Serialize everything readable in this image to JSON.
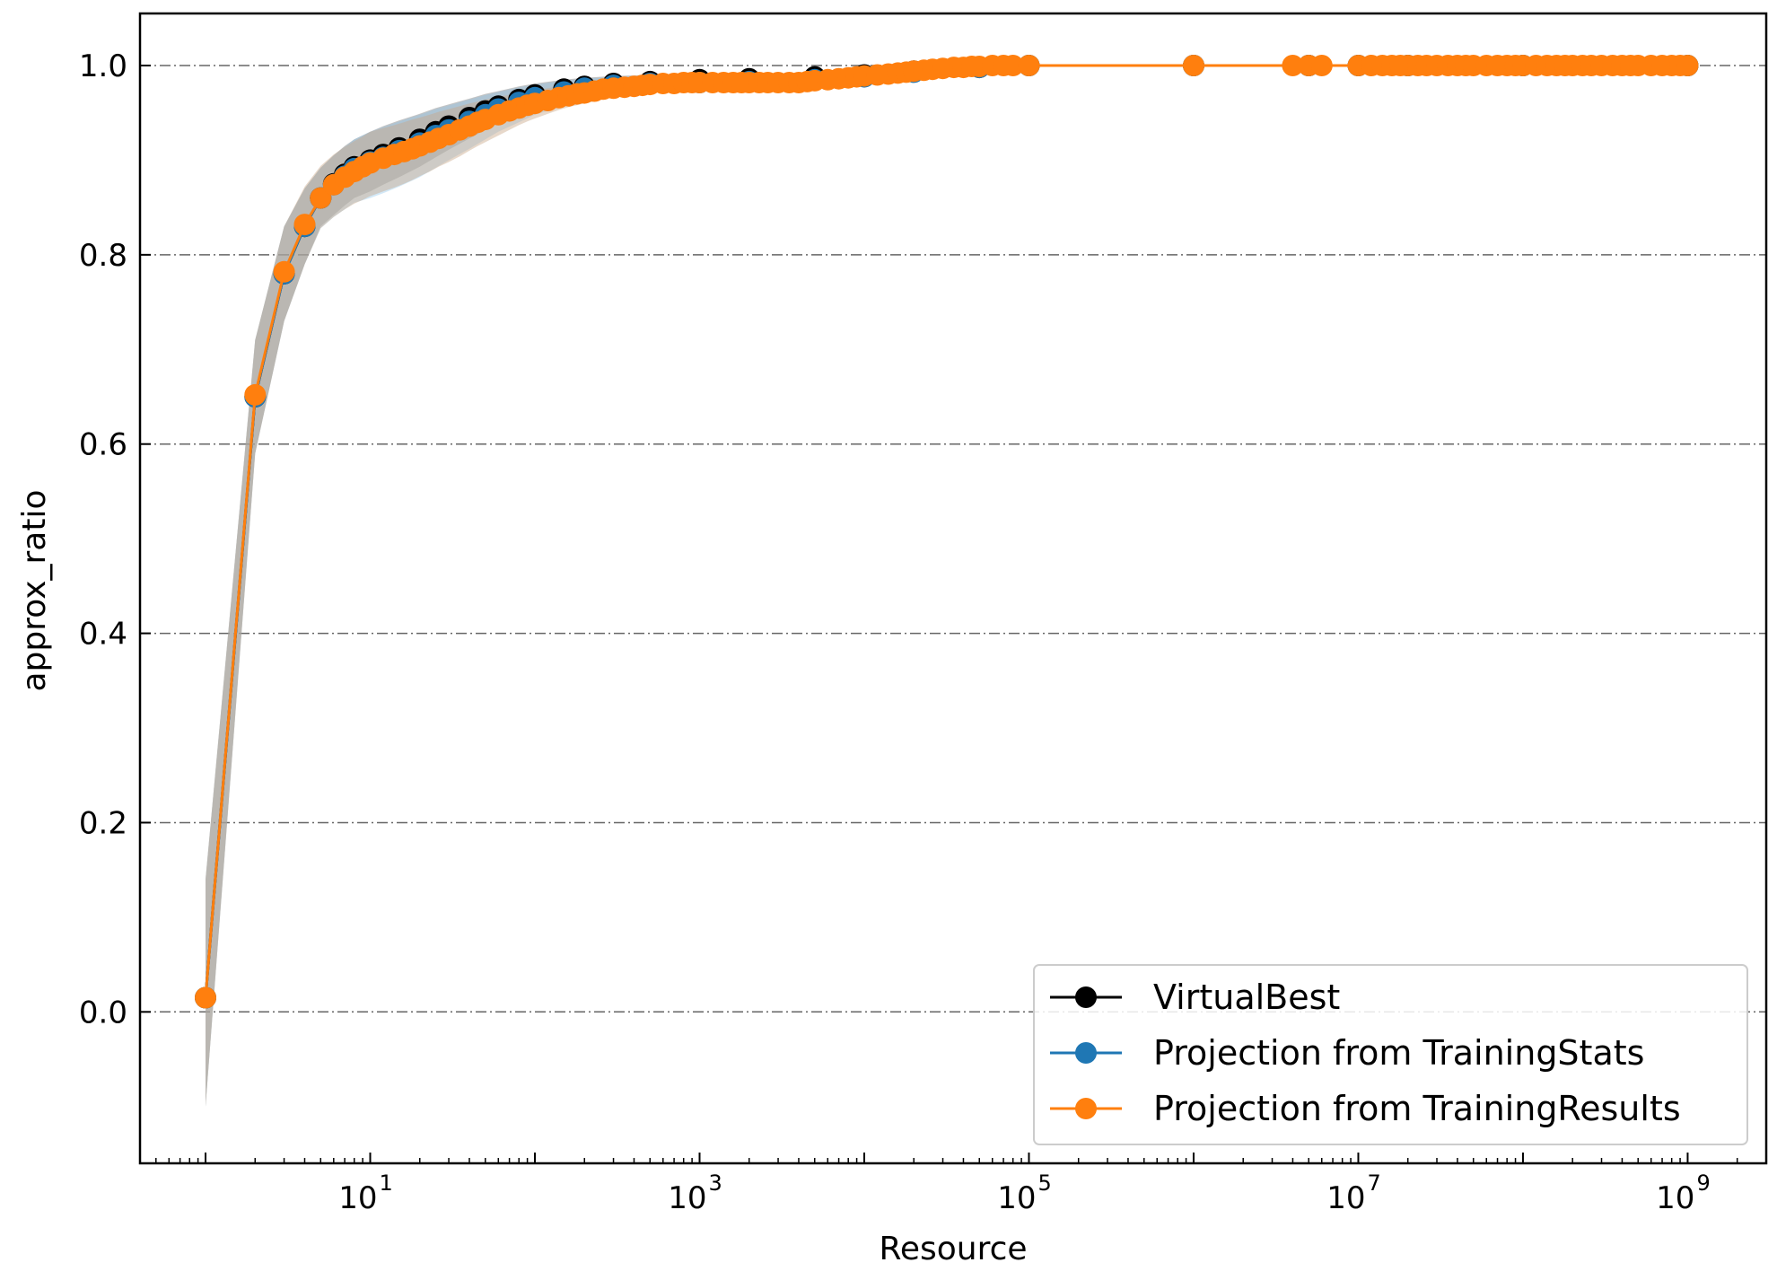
{
  "chart_data": {
    "type": "line",
    "xlabel": "Resource",
    "ylabel": "approx_ratio",
    "xscale": "log",
    "xlim": [
      0.4,
      3000000000
    ],
    "ylim": [
      -0.16,
      1.055
    ],
    "x_ticks": [
      {
        "base": "10",
        "exp": "1",
        "value": 10
      },
      {
        "base": "10",
        "exp": "3",
        "value": 1000
      },
      {
        "base": "10",
        "exp": "5",
        "value": 100000
      },
      {
        "base": "10",
        "exp": "7",
        "value": 10000000
      },
      {
        "base": "10",
        "exp": "9",
        "value": 1000000000
      }
    ],
    "y_ticks": [
      {
        "label": "0.0",
        "value": 0.0
      },
      {
        "label": "0.2",
        "value": 0.2
      },
      {
        "label": "0.4",
        "value": 0.4
      },
      {
        "label": "0.6",
        "value": 0.6
      },
      {
        "label": "0.8",
        "value": 0.8
      },
      {
        "label": "1.0",
        "value": 1.0
      }
    ],
    "grid": "horizontal dash-dot",
    "legend_position": "bottom-right",
    "series": [
      {
        "name": "VirtualBest",
        "color": "#000000",
        "band_color": "#555555",
        "x": [
          1,
          2,
          3,
          4,
          5,
          6,
          7,
          8,
          10,
          12,
          15,
          20,
          25,
          30,
          40,
          50,
          60,
          80,
          100,
          150,
          200,
          300,
          500,
          1000,
          2000,
          5000,
          10000,
          20000,
          50000,
          100000,
          1000000,
          5000000,
          10000000,
          20000000,
          100000000,
          1000000000
        ],
        "y": [
          0.015,
          0.65,
          0.78,
          0.83,
          0.86,
          0.875,
          0.885,
          0.893,
          0.9,
          0.906,
          0.913,
          0.922,
          0.93,
          0.936,
          0.945,
          0.952,
          0.957,
          0.964,
          0.969,
          0.975,
          0.978,
          0.981,
          0.983,
          0.985,
          0.986,
          0.988,
          0.99,
          0.994,
          0.998,
          1.0,
          1.0,
          1.0,
          1.0,
          1.0,
          1.0,
          1.0
        ],
        "y_low": [
          -0.1,
          0.59,
          0.73,
          0.79,
          0.83,
          0.842,
          0.852,
          0.86,
          0.867,
          0.874,
          0.882,
          0.893,
          0.903,
          0.911,
          0.923,
          0.932,
          0.939,
          0.949,
          0.956,
          0.964,
          0.968,
          0.973,
          0.976,
          0.979,
          0.981,
          0.984,
          0.987,
          0.992,
          0.997,
          1.0,
          1.0,
          1.0,
          1.0,
          1.0,
          1.0,
          1.0
        ],
        "y_high": [
          0.14,
          0.71,
          0.83,
          0.87,
          0.892,
          0.905,
          0.915,
          0.922,
          0.93,
          0.936,
          0.942,
          0.949,
          0.955,
          0.959,
          0.965,
          0.97,
          0.973,
          0.978,
          0.981,
          0.985,
          0.987,
          0.989,
          0.99,
          0.991,
          0.991,
          0.992,
          0.993,
          0.996,
          0.999,
          1.0,
          1.0,
          1.0,
          1.0,
          1.0,
          1.0,
          1.0
        ]
      },
      {
        "name": "Projection from TrainingStats",
        "color": "#1f77b4",
        "band_color": "#8ec5ea",
        "x": [
          1,
          2,
          3,
          4,
          5,
          6,
          7,
          8,
          10,
          12,
          15,
          20,
          25,
          30,
          40,
          50,
          60,
          80,
          100,
          150,
          200,
          300,
          500,
          1000,
          2000,
          5000,
          10000,
          20000,
          50000,
          100000,
          1000000,
          5000000,
          10000000,
          20000000,
          100000000,
          1000000000
        ],
        "y": [
          0.015,
          0.65,
          0.78,
          0.83,
          0.86,
          0.874,
          0.883,
          0.891,
          0.898,
          0.903,
          0.91,
          0.918,
          0.926,
          0.932,
          0.941,
          0.948,
          0.954,
          0.961,
          0.966,
          0.972,
          0.976,
          0.979,
          0.981,
          0.982,
          0.983,
          0.985,
          0.988,
          0.993,
          0.998,
          1.0,
          1.0,
          1.0,
          1.0,
          1.0,
          1.0,
          1.0
        ],
        "y_low": [
          -0.1,
          0.59,
          0.73,
          0.79,
          0.828,
          0.84,
          0.848,
          0.855,
          0.86,
          0.865,
          0.872,
          0.882,
          0.892,
          0.9,
          0.912,
          0.922,
          0.93,
          0.94,
          0.948,
          0.957,
          0.962,
          0.967,
          0.971,
          0.974,
          0.976,
          0.979,
          0.984,
          0.99,
          0.996,
          1.0,
          1.0,
          1.0,
          1.0,
          1.0,
          1.0,
          1.0
        ],
        "y_high": [
          0.14,
          0.71,
          0.83,
          0.87,
          0.892,
          0.905,
          0.914,
          0.922,
          0.93,
          0.935,
          0.941,
          0.948,
          0.954,
          0.958,
          0.964,
          0.969,
          0.972,
          0.977,
          0.98,
          0.984,
          0.986,
          0.988,
          0.989,
          0.99,
          0.99,
          0.991,
          0.992,
          0.995,
          0.999,
          1.0,
          1.0,
          1.0,
          1.0,
          1.0,
          1.0,
          1.0
        ]
      },
      {
        "name": "Projection from TrainingResults",
        "color": "#ff7f0e",
        "band_color": "#c9a98a",
        "x": [
          1,
          2,
          3,
          4,
          5,
          6,
          7,
          8,
          9,
          10,
          12,
          14,
          16,
          18,
          20,
          23,
          26,
          30,
          35,
          40,
          45,
          50,
          60,
          70,
          80,
          90,
          100,
          120,
          140,
          160,
          180,
          200,
          230,
          260,
          300,
          350,
          400,
          450,
          500,
          600,
          700,
          800,
          900,
          1000,
          1200,
          1400,
          1600,
          1800,
          2000,
          2300,
          2600,
          3000,
          3500,
          4000,
          4500,
          5000,
          6000,
          7000,
          8000,
          9000,
          10000,
          12000,
          14000,
          16000,
          18000,
          20000,
          23000,
          26000,
          30000,
          35000,
          40000,
          45000,
          50000,
          60000,
          70000,
          80000,
          100000,
          1000000,
          4000000,
          5000000,
          6000000,
          10000000,
          12000000,
          14000000,
          16000000,
          18000000,
          20000000,
          23000000,
          26000000,
          30000000,
          35000000,
          40000000,
          45000000,
          50000000,
          60000000,
          70000000,
          80000000,
          90000000,
          100000000,
          120000000,
          140000000,
          160000000,
          180000000,
          200000000,
          230000000,
          260000000,
          300000000,
          350000000,
          400000000,
          450000000,
          500000000,
          600000000,
          700000000,
          800000000,
          900000000,
          1000000000
        ],
        "y": [
          0.015,
          0.652,
          0.782,
          0.832,
          0.86,
          0.874,
          0.882,
          0.888,
          0.893,
          0.897,
          0.902,
          0.906,
          0.909,
          0.912,
          0.915,
          0.919,
          0.923,
          0.927,
          0.932,
          0.936,
          0.94,
          0.943,
          0.948,
          0.952,
          0.955,
          0.958,
          0.96,
          0.963,
          0.966,
          0.968,
          0.97,
          0.971,
          0.973,
          0.975,
          0.976,
          0.977,
          0.978,
          0.979,
          0.98,
          0.981,
          0.981,
          0.982,
          0.982,
          0.982,
          0.982,
          0.982,
          0.982,
          0.982,
          0.982,
          0.982,
          0.982,
          0.982,
          0.982,
          0.982,
          0.983,
          0.984,
          0.985,
          0.986,
          0.987,
          0.988,
          0.989,
          0.99,
          0.991,
          0.992,
          0.993,
          0.994,
          0.995,
          0.996,
          0.997,
          0.998,
          0.998,
          0.999,
          0.999,
          1.0,
          1.0,
          1.0,
          1.0,
          1.0,
          1.0,
          1.0,
          1.0,
          1.0,
          1.0,
          1.0,
          1.0,
          1.0,
          1.0,
          1.0,
          1.0,
          1.0,
          1.0,
          1.0,
          1.0,
          1.0,
          1.0,
          1.0,
          1.0,
          1.0,
          1.0,
          1.0,
          1.0,
          1.0,
          1.0,
          1.0,
          1.0,
          1.0,
          1.0,
          1.0,
          1.0,
          1.0,
          1.0,
          1.0,
          1.0,
          1.0,
          1.0,
          1.0
        ],
        "y_low": [
          -0.1,
          0.59,
          0.73,
          0.79,
          0.828,
          0.84,
          0.848,
          0.854,
          0.858,
          0.862,
          0.867,
          0.871,
          0.875,
          0.879,
          0.883,
          0.888,
          0.893,
          0.898,
          0.904,
          0.91,
          0.915,
          0.919,
          0.926,
          0.932,
          0.937,
          0.941,
          0.944,
          0.949,
          0.953,
          0.956,
          0.958,
          0.96,
          0.962,
          0.964,
          0.966,
          0.968,
          0.969,
          0.971,
          0.972,
          0.973,
          0.974,
          0.975,
          0.975,
          0.975,
          0.975,
          0.975,
          0.975,
          0.975,
          0.975,
          0.975,
          0.975,
          0.975,
          0.975,
          0.976,
          0.977,
          0.978,
          0.979,
          0.98,
          0.982,
          0.983,
          0.984,
          0.986,
          0.987,
          0.988,
          0.989,
          0.991,
          0.992,
          0.993,
          0.995,
          0.996,
          0.997,
          0.998,
          0.998,
          1.0,
          1.0,
          1.0,
          1.0,
          1.0,
          1.0,
          1.0,
          1.0,
          1.0,
          1.0,
          1.0,
          1.0,
          1.0,
          1.0,
          1.0,
          1.0,
          1.0,
          1.0,
          1.0,
          1.0,
          1.0,
          1.0,
          1.0,
          1.0,
          1.0,
          1.0,
          1.0,
          1.0,
          1.0,
          1.0,
          1.0,
          1.0,
          1.0,
          1.0,
          1.0,
          1.0,
          1.0,
          1.0,
          1.0,
          1.0,
          1.0,
          1.0,
          1.0
        ],
        "y_high": [
          0.14,
          0.71,
          0.83,
          0.872,
          0.894,
          0.906,
          0.914,
          0.92,
          0.925,
          0.93,
          0.934,
          0.937,
          0.94,
          0.943,
          0.945,
          0.948,
          0.951,
          0.954,
          0.957,
          0.96,
          0.962,
          0.964,
          0.967,
          0.969,
          0.971,
          0.973,
          0.974,
          0.976,
          0.978,
          0.979,
          0.98,
          0.981,
          0.982,
          0.983,
          0.984,
          0.985,
          0.986,
          0.986,
          0.987,
          0.988,
          0.988,
          0.988,
          0.988,
          0.988,
          0.988,
          0.988,
          0.988,
          0.988,
          0.988,
          0.988,
          0.988,
          0.988,
          0.988,
          0.988,
          0.989,
          0.99,
          0.991,
          0.992,
          0.992,
          0.993,
          0.994,
          0.994,
          0.995,
          0.996,
          0.996,
          0.997,
          0.998,
          0.998,
          0.999,
          0.999,
          1.0,
          1.0,
          1.0,
          1.0,
          1.0,
          1.0,
          1.0,
          1.0,
          1.0,
          1.0,
          1.0,
          1.0,
          1.0,
          1.0,
          1.0,
          1.0,
          1.0,
          1.0,
          1.0,
          1.0,
          1.0,
          1.0,
          1.0,
          1.0,
          1.0,
          1.0,
          1.0,
          1.0,
          1.0,
          1.0,
          1.0,
          1.0,
          1.0,
          1.0,
          1.0,
          1.0,
          1.0,
          1.0,
          1.0,
          1.0,
          1.0,
          1.0,
          1.0,
          1.0,
          1.0,
          1.0
        ]
      }
    ]
  }
}
